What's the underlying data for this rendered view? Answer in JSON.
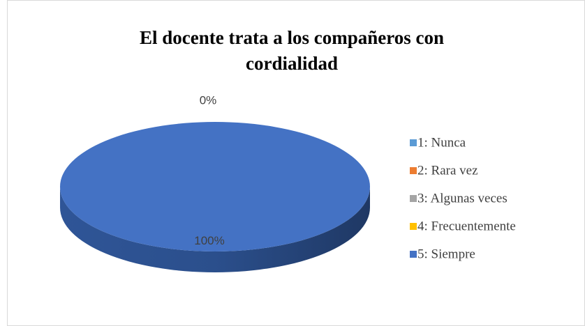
{
  "chart_data": {
    "type": "pie",
    "title": "El docente trata a los compañeros con cordialidad",
    "categories": [
      "1: Nunca",
      "2: Rara vez",
      "3: Algunas veces",
      "4: Frecuentemente",
      "5: Siempre"
    ],
    "values": [
      0,
      0,
      0,
      0,
      100
    ],
    "value_labels": [
      "0%",
      null,
      null,
      null,
      "100%"
    ],
    "colors": [
      "#5b9bd5",
      "#ed7d31",
      "#a5a5a5",
      "#ffc000",
      "#4472c4"
    ],
    "legend": "right"
  }
}
